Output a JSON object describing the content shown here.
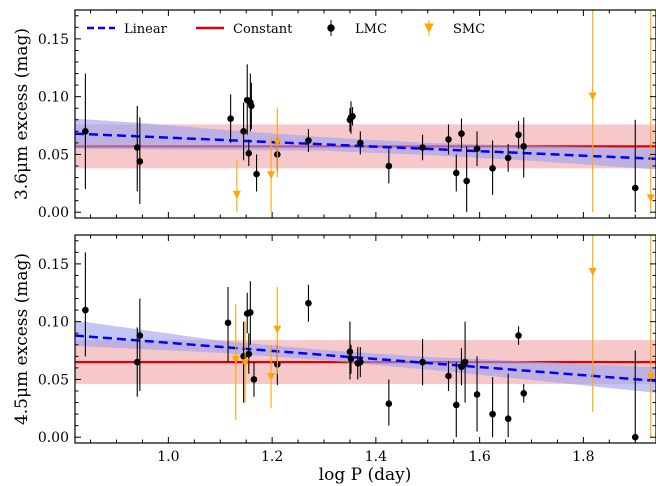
{
  "figure": {
    "xlabel": "log P (day)",
    "colors": {
      "linear": "#0000ff",
      "linear_band": "#9aa0f2",
      "constant": "#e00000",
      "constant_band": "#f4b6b8",
      "lmc": "#000000",
      "smc": "#ffa500"
    }
  },
  "legend": {
    "linear": "Linear",
    "constant": "Constant",
    "lmc": "LMC",
    "smc": "SMC"
  },
  "chart_data": [
    {
      "type": "scatter",
      "ylabel": "3.6μm excess (mag)",
      "xlim": [
        0.82,
        1.94
      ],
      "ylim": [
        -0.005,
        0.175
      ],
      "xticks": [
        1.0,
        1.2,
        1.4,
        1.6,
        1.8
      ],
      "yticks": [
        0.0,
        0.05,
        0.1,
        0.15
      ],
      "constant": {
        "value": 0.057,
        "band": [
          0.038,
          0.076
        ]
      },
      "linear": {
        "x": [
          0.82,
          0.94,
          1.1,
          1.3,
          1.5,
          1.7,
          1.94
        ],
        "y": [
          0.068,
          0.0657,
          0.0626,
          0.0587,
          0.0548,
          0.0509,
          0.0462
        ],
        "band_lower": [
          0.055,
          0.0545,
          0.054,
          0.0532,
          0.0495,
          0.0445,
          0.037
        ],
        "band_upper": [
          0.081,
          0.0775,
          0.0715,
          0.065,
          0.06,
          0.0575,
          0.0555
        ]
      },
      "series": [
        {
          "name": "LMC",
          "points": [
            {
              "x": 0.84,
              "y": 0.07,
              "err": [
                0.02,
                0.12
              ]
            },
            {
              "x": 0.94,
              "y": 0.056,
              "err": [
                0.018,
                0.092
              ]
            },
            {
              "x": 0.945,
              "y": 0.044,
              "err": [
                0.007,
                0.082
              ]
            },
            {
              "x": 1.12,
              "y": 0.081,
              "err": [
                0.06,
                0.102
              ]
            },
            {
              "x": 1.145,
              "y": 0.07,
              "err": [
                0.045,
                0.095
              ]
            },
            {
              "x": 1.152,
              "y": 0.097,
              "err": [
                0.067,
                0.128
              ]
            },
            {
              "x": 1.155,
              "y": 0.051,
              "err": [
                0.04,
                0.063
              ]
            },
            {
              "x": 1.158,
              "y": 0.095,
              "err": [
                0.07,
                0.12
              ]
            },
            {
              "x": 1.16,
              "y": 0.092,
              "err": [
                0.072,
                0.112
              ]
            },
            {
              "x": 1.17,
              "y": 0.033,
              "err": [
                0.018,
                0.05
              ]
            },
            {
              "x": 1.21,
              "y": 0.05,
              "err": [
                0.035,
                0.065
              ]
            },
            {
              "x": 1.27,
              "y": 0.062,
              "err": [
                0.052,
                0.072
              ]
            },
            {
              "x": 1.35,
              "y": 0.08,
              "err": [
                0.07,
                0.09
              ]
            },
            {
              "x": 1.352,
              "y": 0.082,
              "err": [
                0.068,
                0.096
              ]
            },
            {
              "x": 1.355,
              "y": 0.083,
              "err": [
                0.075,
                0.091
              ]
            },
            {
              "x": 1.37,
              "y": 0.06,
              "err": [
                0.05,
                0.07
              ]
            },
            {
              "x": 1.425,
              "y": 0.04,
              "err": [
                0.025,
                0.055
              ]
            },
            {
              "x": 1.49,
              "y": 0.056,
              "err": [
                0.045,
                0.067
              ]
            },
            {
              "x": 1.54,
              "y": 0.063,
              "err": [
                0.05,
                0.076
              ]
            },
            {
              "x": 1.555,
              "y": 0.034,
              "err": [
                0.018,
                0.05
              ]
            },
            {
              "x": 1.565,
              "y": 0.068,
              "err": [
                0.055,
                0.081
              ]
            },
            {
              "x": 1.575,
              "y": 0.027,
              "err": [
                0.0,
                0.057
              ]
            },
            {
              "x": 1.595,
              "y": 0.055,
              "err": [
                0.04,
                0.07
              ]
            },
            {
              "x": 1.625,
              "y": 0.038,
              "err": [
                0.015,
                0.062
              ]
            },
            {
              "x": 1.655,
              "y": 0.047,
              "err": [
                0.035,
                0.059
              ]
            },
            {
              "x": 1.675,
              "y": 0.067,
              "err": [
                0.055,
                0.079
              ]
            },
            {
              "x": 1.685,
              "y": 0.057,
              "err": [
                0.03,
                0.082
              ]
            },
            {
              "x": 1.9,
              "y": 0.021,
              "err": [
                0.0,
                0.08
              ]
            }
          ]
        },
        {
          "name": "SMC",
          "points": [
            {
              "x": 1.132,
              "y": 0.015,
              "err": [
                0.0,
                0.045
              ]
            },
            {
              "x": 1.198,
              "y": 0.032,
              "err": [
                0.0,
                0.065
              ]
            },
            {
              "x": 1.21,
              "y": 0.06,
              "err": [
                0.03,
                0.09
              ]
            },
            {
              "x": 1.818,
              "y": 0.1,
              "err": [
                0.0,
                0.175
              ]
            },
            {
              "x": 1.93,
              "y": 0.012,
              "err": [
                0.0,
                0.175
              ]
            }
          ]
        }
      ]
    },
    {
      "type": "scatter",
      "ylabel": "4.5μm excess (mag)",
      "xlim": [
        0.82,
        1.94
      ],
      "ylim": [
        -0.005,
        0.175
      ],
      "xticks": [
        1.0,
        1.2,
        1.4,
        1.6,
        1.8
      ],
      "yticks": [
        0.0,
        0.05,
        0.1,
        0.15
      ],
      "constant": {
        "value": 0.065,
        "band": [
          0.046,
          0.084
        ]
      },
      "linear": {
        "x": [
          0.82,
          0.94,
          1.1,
          1.3,
          1.5,
          1.7,
          1.94
        ],
        "y": [
          0.088,
          0.0838,
          0.0782,
          0.0712,
          0.0642,
          0.0572,
          0.0488
        ],
        "band_lower": [
          0.079,
          0.0765,
          0.073,
          0.0665,
          0.0585,
          0.0495,
          0.0385
        ],
        "band_upper": [
          0.101,
          0.0935,
          0.0835,
          0.0755,
          0.0695,
          0.0655,
          0.0605
        ]
      },
      "series": [
        {
          "name": "LMC",
          "points": [
            {
              "x": 0.84,
              "y": 0.11,
              "err": [
                0.07,
                0.16
              ]
            },
            {
              "x": 0.94,
              "y": 0.065,
              "err": [
                0.035,
                0.095
              ]
            },
            {
              "x": 0.945,
              "y": 0.088,
              "err": [
                0.04,
                0.12
              ]
            },
            {
              "x": 1.115,
              "y": 0.099,
              "err": [
                0.065,
                0.13
              ]
            },
            {
              "x": 1.145,
              "y": 0.07,
              "err": [
                0.03,
                0.1
              ]
            },
            {
              "x": 1.152,
              "y": 0.107,
              "err": [
                0.09,
                0.125
              ]
            },
            {
              "x": 1.155,
              "y": 0.072,
              "err": [
                0.055,
                0.09
              ]
            },
            {
              "x": 1.158,
              "y": 0.108,
              "err": [
                0.08,
                0.135
              ]
            },
            {
              "x": 1.165,
              "y": 0.05,
              "err": [
                0.035,
                0.065
              ]
            },
            {
              "x": 1.21,
              "y": 0.063,
              "err": [
                0.045,
                0.08
              ]
            },
            {
              "x": 1.27,
              "y": 0.116,
              "err": [
                0.1,
                0.132
              ]
            },
            {
              "x": 1.35,
              "y": 0.074,
              "err": [
                0.05,
                0.1
              ]
            },
            {
              "x": 1.352,
              "y": 0.068,
              "err": [
                0.055,
                0.08
              ]
            },
            {
              "x": 1.365,
              "y": 0.064,
              "err": [
                0.05,
                0.078
              ]
            },
            {
              "x": 1.37,
              "y": 0.065,
              "err": [
                0.052,
                0.078
              ]
            },
            {
              "x": 1.425,
              "y": 0.029,
              "err": [
                0.01,
                0.05
              ]
            },
            {
              "x": 1.49,
              "y": 0.065,
              "err": [
                0.045,
                0.085
              ]
            },
            {
              "x": 1.54,
              "y": 0.053,
              "err": [
                0.04,
                0.066
              ]
            },
            {
              "x": 1.555,
              "y": 0.028,
              "err": [
                0.0,
                0.065
              ]
            },
            {
              "x": 1.565,
              "y": 0.061,
              "err": [
                0.045,
                0.077
              ]
            },
            {
              "x": 1.572,
              "y": 0.065,
              "err": [
                0.03,
                0.1
              ]
            },
            {
              "x": 1.595,
              "y": 0.037,
              "err": [
                0.005,
                0.07
              ]
            },
            {
              "x": 1.625,
              "y": 0.02,
              "err": [
                0.0,
                0.052
              ]
            },
            {
              "x": 1.655,
              "y": 0.016,
              "err": [
                0.0,
                0.055
              ]
            },
            {
              "x": 1.675,
              "y": 0.088,
              "err": [
                0.08,
                0.096
              ]
            },
            {
              "x": 1.685,
              "y": 0.038,
              "err": [
                0.03,
                0.046
              ]
            },
            {
              "x": 1.9,
              "y": 0.0,
              "err": [
                0.0,
                0.075
              ]
            }
          ]
        },
        {
          "name": "SMC",
          "points": [
            {
              "x": 1.13,
              "y": 0.067,
              "err": [
                0.015,
                0.115
              ]
            },
            {
              "x": 1.148,
              "y": 0.064,
              "err": [
                0.03,
                0.1
              ]
            },
            {
              "x": 1.198,
              "y": 0.052,
              "err": [
                0.025,
                0.08
              ]
            },
            {
              "x": 1.21,
              "y": 0.093,
              "err": [
                0.055,
                0.13
              ]
            },
            {
              "x": 1.818,
              "y": 0.143,
              "err": [
                0.022,
                0.175
              ]
            },
            {
              "x": 1.93,
              "y": 0.052,
              "err": [
                0.0,
                0.175
              ]
            }
          ]
        }
      ]
    }
  ]
}
